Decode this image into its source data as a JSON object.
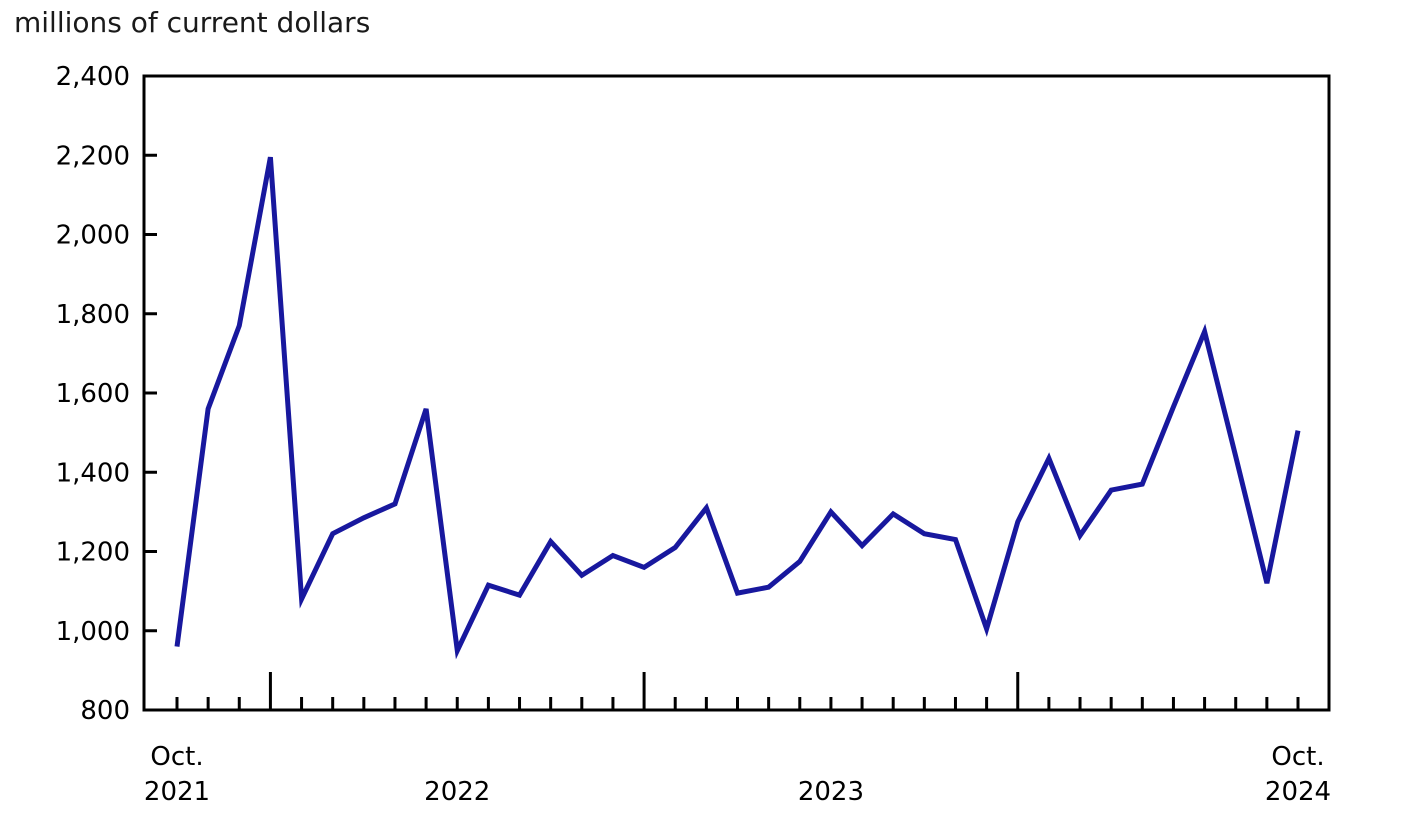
{
  "title": "millions of current dollars",
  "chart_data": {
    "type": "line",
    "title": "millions of current dollars",
    "xlabel": "",
    "ylabel": "millions of current dollars",
    "grid": false,
    "legend": "none",
    "line_color": "#18189E",
    "axis_color": "#000000",
    "ylim": [
      800,
      2400
    ],
    "ytick_step": 200,
    "ytick_labels": [
      "800",
      "1,000",
      "1,200",
      "1,400",
      "1,600",
      "1,800",
      "2,000",
      "2,200",
      "2,400"
    ],
    "x": [
      "Oct. 2021",
      "Nov. 2021",
      "Dec. 2021",
      "Jan. 2022",
      "Feb. 2022",
      "Mar. 2022",
      "Apr. 2022",
      "May 2022",
      "Jun. 2022",
      "Jul. 2022",
      "Aug. 2022",
      "Sep. 2022",
      "Oct. 2022",
      "Nov. 2022",
      "Dec. 2022",
      "Jan. 2023",
      "Feb. 2023",
      "Mar. 2023",
      "Apr. 2023",
      "May 2023",
      "Jun. 2023",
      "Jul. 2023",
      "Aug. 2023",
      "Sep. 2023",
      "Oct. 2023",
      "Nov. 2023",
      "Dec. 2023",
      "Jan. 2024",
      "Feb. 2024",
      "Mar. 2024",
      "Apr. 2024",
      "May 2024",
      "Jun. 2024",
      "Jul. 2024",
      "Aug. 2024",
      "Sep. 2024",
      "Oct. 2024"
    ],
    "values": [
      960,
      1560,
      1770,
      2195,
      1080,
      1245,
      1285,
      1320,
      1560,
      950,
      1115,
      1090,
      1225,
      1140,
      1190,
      1160,
      1210,
      1310,
      1095,
      1110,
      1175,
      1300,
      1215,
      1295,
      1245,
      1230,
      1005,
      1275,
      1435,
      1240,
      1355,
      1370,
      1565,
      1755,
      1440,
      1120,
      1505
    ],
    "x_axis_labels": {
      "start": {
        "top": "Oct.",
        "bottom": "2021"
      },
      "years": [
        {
          "label": "2022",
          "index": 9
        },
        {
          "label": "2023",
          "index": 21
        }
      ],
      "end": {
        "top": "Oct.",
        "bottom": "2024"
      }
    }
  }
}
